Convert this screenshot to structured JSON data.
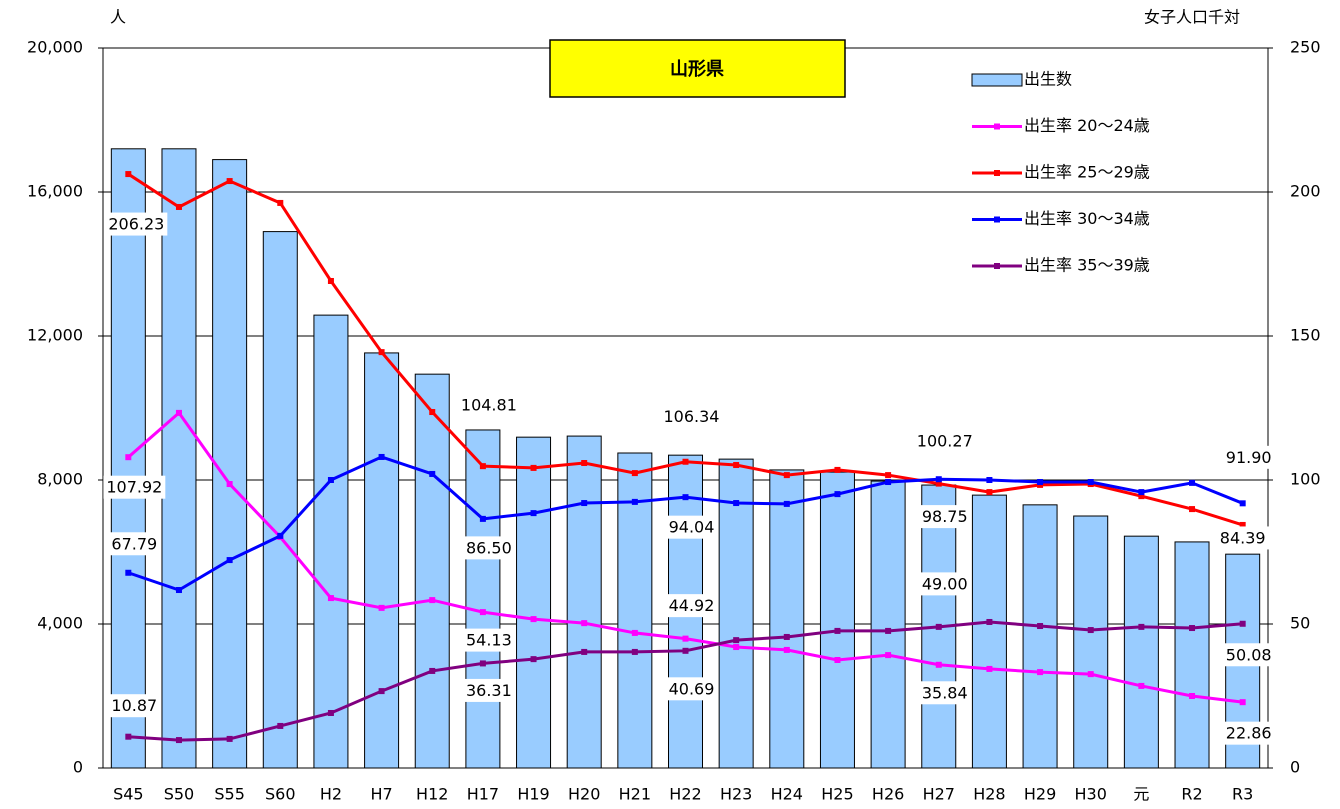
{
  "chart_data": {
    "type": "bar-line",
    "title": "山形県",
    "y_label": "人",
    "y2_label": "女子人口千対",
    "categories": [
      "S45",
      "S50",
      "S55",
      "S60",
      "H2",
      "H7",
      "H12",
      "H17",
      "H19",
      "H20",
      "H21",
      "H22",
      "H23",
      "H24",
      "H25",
      "H26",
      "H27",
      "H28",
      "H29",
      "H30",
      "元",
      "R2",
      "R3"
    ],
    "ylim": [
      0,
      20000
    ],
    "yticks": [
      0,
      {
        "value": 4000,
        "label": "4,000"
      },
      {
        "value": 8000,
        "label": "8,000"
      },
      {
        "value": 12000,
        "label": "12,000"
      },
      {
        "value": 16000,
        "label": "16,000"
      },
      {
        "value": 20000,
        "label": "20,000"
      }
    ],
    "y2lim": [
      0,
      250
    ],
    "y2ticks": [
      0,
      50,
      100,
      150,
      200,
      250
    ],
    "grid": true,
    "legend": "upper right",
    "series": [
      {
        "name": "出生数",
        "type": "bar",
        "color": "#99ccff",
        "values": [
          17200,
          17200,
          16900,
          14900,
          12580,
          11530,
          10940,
          9390,
          9190,
          9220,
          8750,
          8690,
          8580,
          8280,
          8220,
          7970,
          7860,
          7580,
          7310,
          7000,
          6440,
          6280,
          5940
        ]
      },
      {
        "name": "出生率 20～24歳",
        "type": "line",
        "axis": "y2",
        "color": "#ff00ff",
        "values": [
          107.92,
          123.3,
          98.6,
          80.2,
          59.0,
          55.6,
          58.3,
          54.13,
          51.7,
          50.3,
          46.9,
          44.92,
          42.0,
          41.0,
          37.5,
          39.2,
          35.84,
          34.4,
          33.3,
          32.6,
          28.5,
          25.0,
          22.86
        ],
        "value_labels": [
          "107.92",
          null,
          null,
          null,
          null,
          null,
          null,
          "54.13",
          null,
          null,
          null,
          "44.92",
          null,
          null,
          null,
          null,
          "35.84",
          null,
          null,
          null,
          null,
          null,
          "22.86"
        ]
      },
      {
        "name": "出生率 25～29歳",
        "type": "line",
        "axis": "y2",
        "color": "#ff0000",
        "values": [
          206.23,
          194.8,
          203.8,
          196.2,
          169.1,
          144.4,
          123.6,
          104.81,
          104.2,
          105.9,
          102.4,
          106.34,
          105.2,
          101.7,
          103.5,
          101.7,
          98.75,
          95.8,
          98.3,
          98.6,
          94.4,
          89.9,
          84.39
        ],
        "value_labels": [
          "206.23",
          null,
          null,
          null,
          null,
          null,
          null,
          "104.81",
          null,
          null,
          null,
          "106.34",
          null,
          null,
          null,
          null,
          "98.75",
          null,
          null,
          null,
          null,
          null,
          "84.39"
        ]
      },
      {
        "name": "出生率 30～34歳",
        "type": "line",
        "axis": "y2",
        "color": "#0000ff",
        "values": [
          67.79,
          61.8,
          72.2,
          80.6,
          100.0,
          108.0,
          102.1,
          86.5,
          88.5,
          92.0,
          92.4,
          94.04,
          92.0,
          91.7,
          95.1,
          99.3,
          100.27,
          100.0,
          99.3,
          99.3,
          95.8,
          99.0,
          91.9
        ],
        "value_labels": [
          "67.79",
          null,
          null,
          null,
          null,
          null,
          null,
          "86.50",
          null,
          null,
          null,
          "94.04",
          null,
          null,
          null,
          null,
          "100.27",
          null,
          null,
          null,
          null,
          null,
          "91.90"
        ]
      },
      {
        "name": "出生率 35～39歳",
        "type": "line",
        "axis": "y2",
        "color": "#800080",
        "values": [
          10.87,
          9.7,
          10.1,
          14.6,
          19.1,
          26.7,
          33.7,
          36.31,
          37.8,
          40.3,
          40.3,
          40.69,
          44.4,
          45.5,
          47.6,
          47.6,
          49.0,
          50.7,
          49.3,
          47.9,
          49.0,
          48.6,
          50.08
        ],
        "value_labels": [
          "10.87",
          null,
          null,
          null,
          null,
          null,
          null,
          "36.31",
          null,
          null,
          null,
          "40.69",
          null,
          null,
          null,
          null,
          "49.00",
          null,
          null,
          null,
          null,
          null,
          "50.08"
        ]
      }
    ]
  }
}
